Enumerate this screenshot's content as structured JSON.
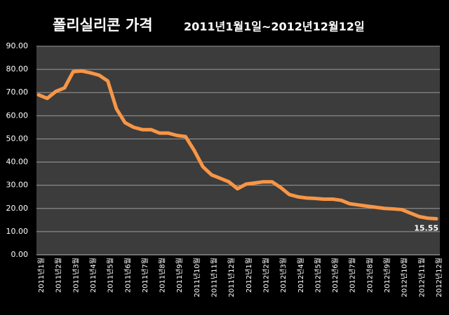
{
  "chart_data": {
    "type": "line",
    "title": "폴리실리콘 가격",
    "subtitle": "2011년1월1일~2012년12월12일",
    "categories": [
      "2011년1월",
      null,
      "2011년2월",
      null,
      "2011년3월",
      null,
      "2011년4월",
      null,
      "2011년5월",
      null,
      "2011년6월",
      null,
      "2011년7월",
      null,
      "2011년8월",
      null,
      "2011년9월",
      null,
      "2011년10월",
      null,
      "2011년11월",
      null,
      "2011년12월",
      null,
      "2012년1월",
      null,
      "2012년2월",
      null,
      "2012년3월",
      null,
      "2012년4월",
      null,
      "2012년5월",
      null,
      "2012년6월",
      null,
      "2012년7월",
      null,
      "2012년8월",
      null,
      "2012년9월",
      null,
      "2012년10월",
      null,
      "2012년11월",
      null,
      "2012년12월"
    ],
    "series": [
      {
        "name": "폴리실리콘 가격",
        "color": "#f79646",
        "values": [
          69,
          67.5,
          70.5,
          72,
          79,
          79.3,
          78.5,
          77.5,
          75,
          63,
          57,
          55,
          54,
          54,
          52.5,
          52.5,
          51.5,
          51,
          45,
          38,
          34.5,
          33,
          31.5,
          28.5,
          30.5,
          31,
          31.5,
          31.5,
          29,
          26,
          25,
          24.5,
          24.3,
          24,
          24,
          23.5,
          22,
          21.5,
          21,
          20.5,
          20,
          19.8,
          19.5,
          18,
          16.5,
          15.8,
          15.55
        ]
      }
    ],
    "ylim": [
      0,
      90
    ],
    "yticks": [
      {
        "value": 0,
        "label": "0.00"
      },
      {
        "value": 10,
        "label": "10.00"
      },
      {
        "value": 20,
        "label": "20.00"
      },
      {
        "value": 30,
        "label": "30.00"
      },
      {
        "value": 40,
        "label": "40.00"
      },
      {
        "value": 50,
        "label": "50.00"
      },
      {
        "value": 60,
        "label": "60.00"
      },
      {
        "value": 70,
        "label": "70.00"
      },
      {
        "value": 80,
        "label": "80.00"
      },
      {
        "value": 90,
        "label": "90.00"
      }
    ],
    "grid": true,
    "label_last_point": true
  }
}
